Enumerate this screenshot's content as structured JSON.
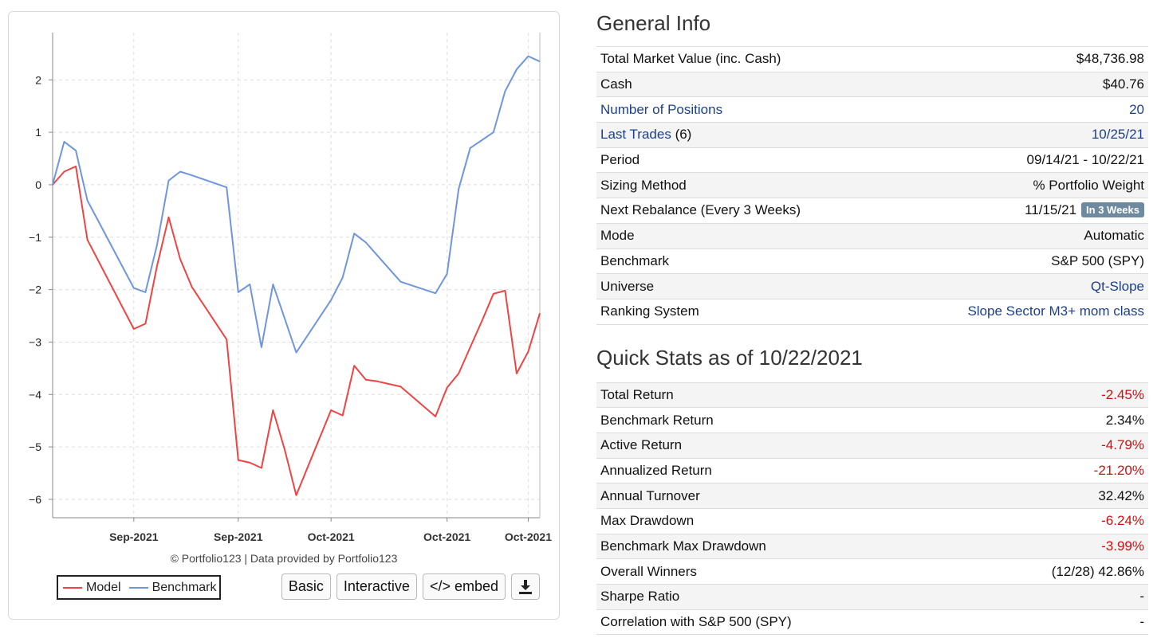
{
  "chart_data": {
    "type": "line",
    "x_tick_labels": [
      "Sep-2021",
      "Sep-2021",
      "Oct-2021",
      "Oct-2021",
      "Oct-2021"
    ],
    "y_ticks": [
      2,
      1,
      0,
      -1,
      -2,
      -3,
      -4,
      -5,
      -6
    ],
    "ylim": [
      -6.35,
      2.9
    ],
    "series": [
      {
        "name": "Model",
        "color": "#ee4444",
        "x": [
          0,
          1,
          2,
          3,
          7,
          8,
          9,
          10,
          11,
          12,
          15,
          16,
          17,
          18,
          19,
          20,
          21,
          24,
          25,
          26,
          27,
          28,
          29,
          30,
          33,
          34,
          35,
          36,
          37,
          38,
          39,
          40
        ],
        "values": [
          0.0,
          0.25,
          0.35,
          -1.05,
          -2.75,
          -2.65,
          -1.55,
          -0.62,
          -1.42,
          -1.95,
          -2.95,
          -5.25,
          -5.3,
          -5.4,
          -4.3,
          -5.05,
          -5.92,
          -4.3,
          -4.4,
          -3.45,
          -3.72,
          -3.75,
          -3.8,
          -3.85,
          -4.42,
          -3.87,
          -3.6,
          -3.1,
          -2.6,
          -2.08,
          -2.02,
          -3.6
        ]
      },
      {
        "name": "Benchmark",
        "color": "#6f96dc",
        "x": [
          0,
          1,
          2,
          3,
          7,
          8,
          9,
          10,
          11,
          12,
          15,
          16,
          17,
          18,
          19,
          20,
          21,
          24,
          25,
          26,
          27,
          28,
          29,
          30,
          33,
          34,
          35,
          36,
          37,
          38,
          39,
          40
        ],
        "values": [
          0.0,
          0.82,
          0.65,
          -0.3,
          -1.97,
          -2.05,
          -1.15,
          0.08,
          0.25,
          0.18,
          -0.05,
          -2.05,
          -1.9,
          -3.1,
          -1.9,
          -2.55,
          -3.2,
          -2.2,
          -1.77,
          -0.93,
          -1.1,
          -1.35,
          -1.6,
          -1.85,
          -2.07,
          -1.7,
          -0.08,
          0.7,
          0.85,
          1.0,
          1.78,
          2.2
        ]
      }
    ],
    "credits": "© Portfolio123 | Data provided by Portfolio123"
  },
  "chart_extra": {
    "model_tail": [
      [
        40,
        -3.6
      ],
      [
        41,
        -3.18
      ],
      [
        42,
        -2.45
      ]
    ],
    "bench_tail": [
      [
        40,
        2.2
      ],
      [
        41,
        2.45
      ],
      [
        42,
        2.35
      ]
    ]
  },
  "legend": {
    "model": "Model",
    "benchmark": "Benchmark"
  },
  "buttons": {
    "basic": "Basic",
    "interactive": "Interactive",
    "embed": "</> embed",
    "download_icon": "download-icon"
  },
  "general_info": {
    "title": "General Info",
    "rows": [
      {
        "label": "Total Market Value (inc. Cash)",
        "value": "$48,736.98"
      },
      {
        "label": "Cash",
        "value": "$40.76"
      },
      {
        "label": "Number of Positions",
        "value": "20"
      },
      {
        "label": "Last Trades",
        "label_suffix": "(6)",
        "value": "10/25/21"
      },
      {
        "label": "Period",
        "value": "09/14/21 - 10/22/21"
      },
      {
        "label": "Sizing Method",
        "value": "% Portfolio Weight"
      },
      {
        "label": "Next Rebalance (Every 3 Weeks)",
        "value": "11/15/21",
        "badge": "In 3 Weeks"
      },
      {
        "label": "Mode",
        "value": "Automatic"
      },
      {
        "label": "Benchmark",
        "value": "S&P 500 (SPY)"
      },
      {
        "label": "Universe",
        "value": "Qt-Slope"
      },
      {
        "label": "Ranking System",
        "value": "Slope Sector M3+ mom class"
      }
    ]
  },
  "quick_stats": {
    "title": "Quick Stats as of 10/22/2021",
    "rows": [
      {
        "label": "Total Return",
        "value": "-2.45%"
      },
      {
        "label": "Benchmark Return",
        "value": "2.34%"
      },
      {
        "label": "Active Return",
        "value": "-4.79%"
      },
      {
        "label": "Annualized Return",
        "value": "-21.20%"
      },
      {
        "label": "Annual Turnover",
        "value": "32.42%"
      },
      {
        "label": "Max Drawdown",
        "value": "-6.24%"
      },
      {
        "label": "Benchmark Max Drawdown",
        "value": "-3.99%"
      },
      {
        "label": "Overall Winners",
        "value": "(12/28) 42.86%"
      },
      {
        "label": "Sharpe Ratio",
        "value": "-"
      },
      {
        "label": "Correlation with S&P 500 (SPY)",
        "value": "-"
      }
    ]
  },
  "colors": {
    "link": "#1c3f8f",
    "negative": "#cc1111",
    "badge": "#6e8a9e"
  }
}
